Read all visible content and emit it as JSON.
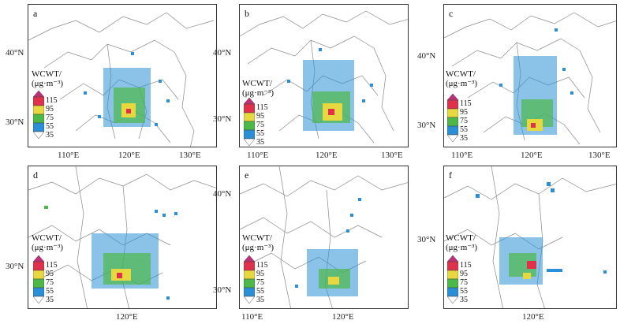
{
  "legend": {
    "title_line1": "WCWT/",
    "title_line2": "(μg·m⁻³)",
    "levels": [
      "115",
      "95",
      "75",
      "55",
      "35"
    ],
    "colors": {
      "top_arrow": "#c0307a",
      "band_115": "#e0304a",
      "band_95": "#e8d840",
      "band_75": "#4cb848",
      "band_55": "#2a8fd6",
      "bottom_arrow": "#ffffff"
    }
  },
  "panels": [
    {
      "letter": "a",
      "lat_labels": [
        "40°N",
        "30°N"
      ],
      "lon_labels": [
        "110°E",
        "120°E",
        "130°E"
      ]
    },
    {
      "letter": "b",
      "lat_labels": [
        "40°N",
        "30°N"
      ],
      "lon_labels": [
        "110°E",
        "120°E",
        "130°E"
      ]
    },
    {
      "letter": "c",
      "lat_labels": [
        "40°N",
        "30°N"
      ],
      "lon_labels": [
        "110°E",
        "120°E",
        "130°E"
      ]
    },
    {
      "letter": "d",
      "lat_labels": [
        "30°N"
      ],
      "lon_labels": [
        "120°E"
      ]
    },
    {
      "letter": "e",
      "lat_labels": [
        "40°N",
        "30°N"
      ],
      "lon_labels": [
        "110°E",
        "120°E"
      ]
    },
    {
      "letter": "f",
      "lat_labels": [
        "30°N"
      ],
      "lon_labels": [
        "120°E"
      ]
    }
  ]
}
